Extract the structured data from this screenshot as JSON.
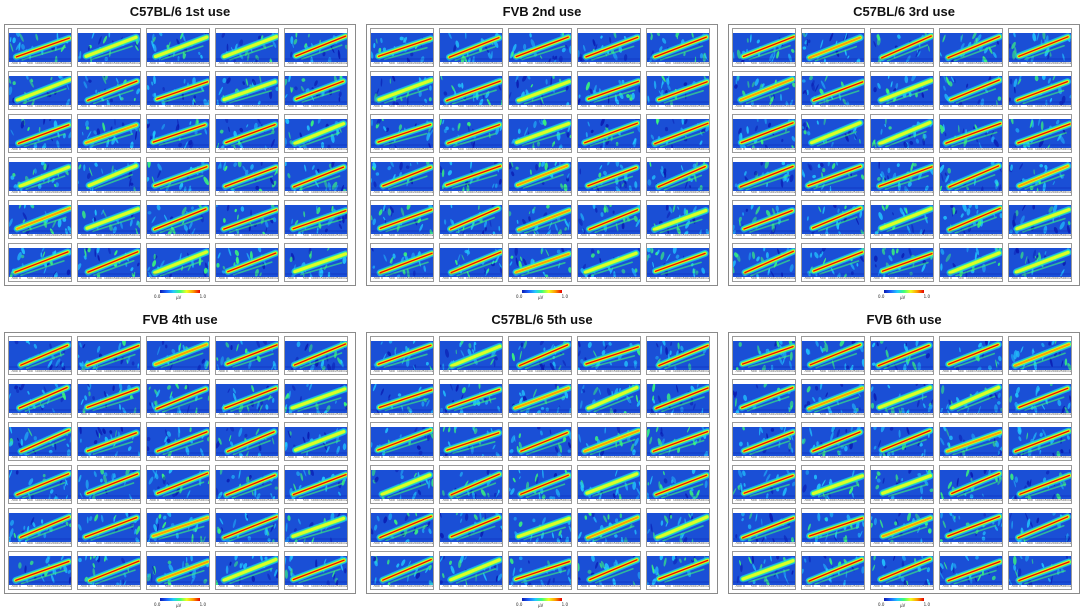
{
  "panels": [
    {
      "title": "C57BL/6 1st use"
    },
    {
      "title": "FVB 2nd use"
    },
    {
      "title": "C57BL/6 3rd use"
    },
    {
      "title": "FVB 4th use"
    },
    {
      "title": "C57BL/6 5th use"
    },
    {
      "title": "FVB 6th use"
    }
  ],
  "grid": {
    "rows": 6,
    "cols": 5
  },
  "tile": {
    "x_tick_labels": [
      "-500",
      "0",
      "500",
      "1000",
      "1500",
      "2000",
      "2500",
      "ms"
    ]
  },
  "colorbar": {
    "min_label": "0.0",
    "max_label": "1.0",
    "unit_label": "μV",
    "colors": [
      "#0a1ab0",
      "#1e64ff",
      "#22c8ff",
      "#3cff78",
      "#f0ff1e",
      "#ff9a00",
      "#e60000"
    ]
  },
  "colors": {
    "background": "#1a4fd6",
    "dark_blue": "#0a1ab0",
    "cyan": "#22c8ff",
    "green": "#3cff78",
    "yellow": "#f0ff1e",
    "orange": "#ff9a00",
    "red": "#e60000"
  }
}
